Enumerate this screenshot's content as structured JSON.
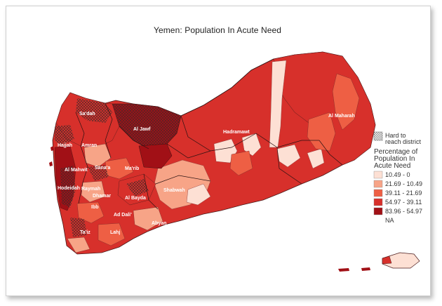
{
  "title": "Yemen: Population In Acute Need",
  "legend": {
    "hatch_label_line1": "Hard to",
    "hatch_label_line2": "reach district",
    "title_line1": "Percentage of",
    "title_line2": "Population In",
    "title_line3": "Acute Need",
    "classes": [
      {
        "label": "10.49 - 0",
        "color": "#fde0d4"
      },
      {
        "label": "21.69 - 10.49",
        "color": "#f7a487"
      },
      {
        "label": "39.11 - 21.69",
        "color": "#ee5f44"
      },
      {
        "label": "54.97 - 39.11",
        "color": "#d7302b"
      },
      {
        "label": "83.96 - 54.97",
        "color": "#a11016"
      }
    ],
    "na_label": "NA"
  },
  "regions": {
    "saada": "Sa'dah",
    "al_jawf": "Al Jawf",
    "hajjah": "Hajjah",
    "amran": "Amran",
    "hadramawt": "Hadramawt",
    "al_maharah": "Al Maharah",
    "al_mahwit": "Al Mahwit",
    "sanaa": "Sana'a",
    "marib": "Ma'rib",
    "hodeidah": "Hodeidah",
    "raymah": "Raymah",
    "dhamar": "Dhamar",
    "al_bayda": "Al Bayda",
    "shabwah": "Shabwah",
    "ibb": "Ibb",
    "ad_dali": "Ad Dali'",
    "abyan": "Abyan",
    "lahj": "Lahj",
    "taiz": "Ta'iz"
  }
}
